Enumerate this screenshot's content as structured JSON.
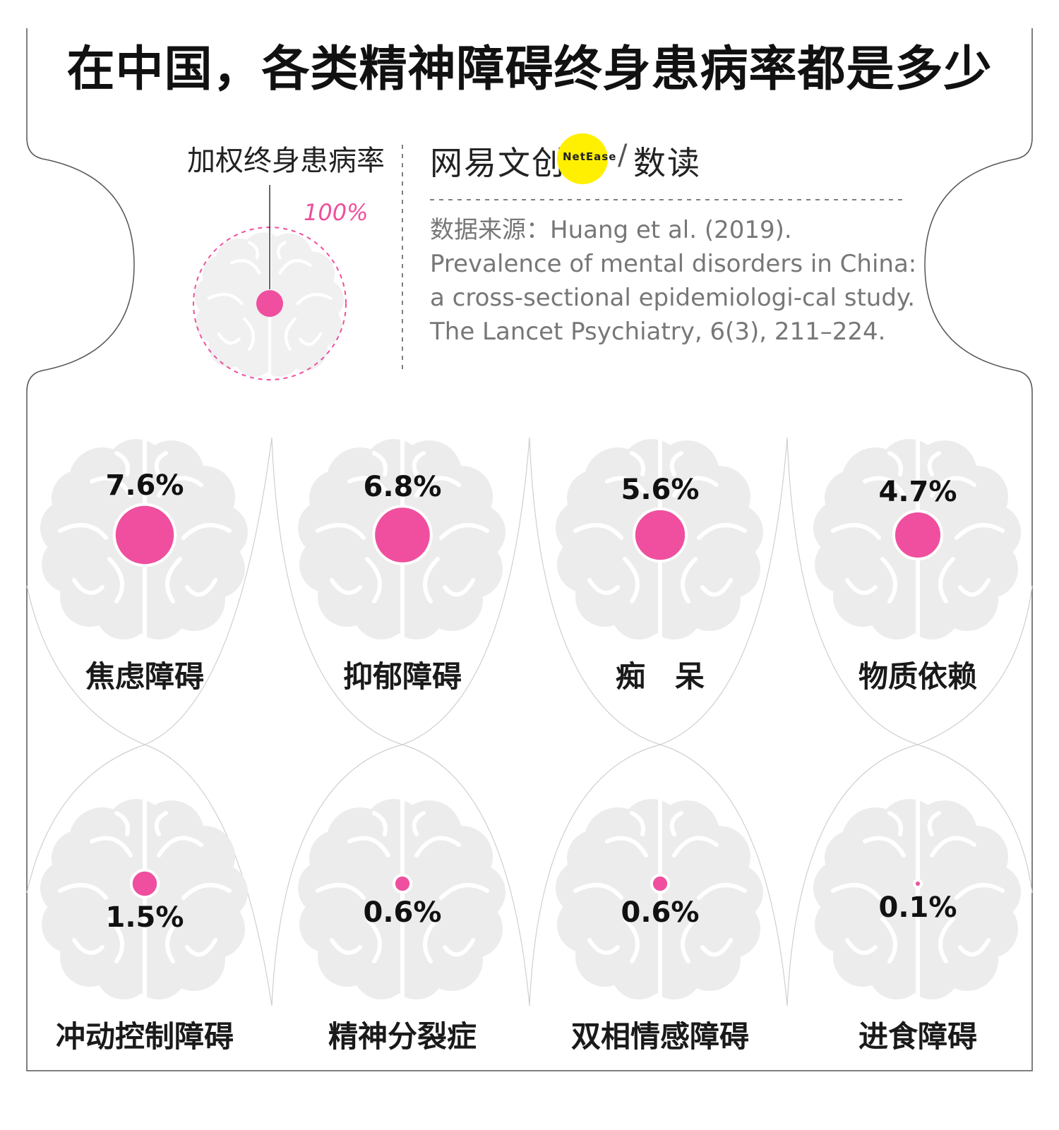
{
  "title": "在中国，各类精神障碍终身患病率都是多少",
  "legend": {
    "label": "加权终身患病率",
    "reference_label": "100%"
  },
  "brand": {
    "name_cn": "网易文创",
    "name_en": "NetEase",
    "separator": "/",
    "sub": "数读",
    "accent_color": "#ffef00"
  },
  "source": {
    "text": "数据来源：Huang et al. (2019). Prevalence of mental disorders in China: a cross-sectional epidemiologi-cal study. The Lancet Psychiatry, 6(3), 211–224."
  },
  "colors": {
    "marker": "#ef4f9e",
    "brain": "#ececec",
    "label": "#1a1a1a"
  },
  "chart_data": {
    "type": "bubble",
    "categories": [
      "焦虑障碍",
      "抑郁障碍",
      "痴　呆",
      "物质依赖",
      "冲动控制障碍",
      "精神分裂症",
      "双相情感障碍",
      "进食障碍"
    ],
    "values": [
      7.6,
      6.8,
      5.6,
      4.7,
      1.5,
      0.6,
      0.6,
      0.1
    ],
    "value_labels": [
      "7.6%",
      "6.8%",
      "5.6%",
      "4.7%",
      "1.5%",
      "0.6%",
      "0.6%",
      "0.1%"
    ],
    "unit": "%",
    "scale_max": 100
  }
}
